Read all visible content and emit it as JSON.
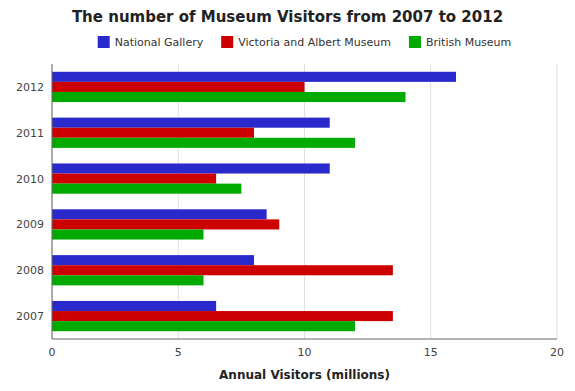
{
  "chart_data": {
    "type": "bar",
    "orientation": "horizontal",
    "title": "The number of Museum Visitors from 2007 to 2012",
    "xlabel": "Annual Visitors (millions)",
    "categories": [
      "2007",
      "2008",
      "2009",
      "2010",
      "2011",
      "2012"
    ],
    "series": [
      {
        "name": "National Gallery",
        "color": "#2929CC",
        "values": [
          6.5,
          8.0,
          8.5,
          11.0,
          11.0,
          16.0
        ]
      },
      {
        "name": "Victoria and Albert Museum",
        "color": "#CC0000",
        "values": [
          13.5,
          13.5,
          9.0,
          6.5,
          8.0,
          10.0
        ]
      },
      {
        "name": "British Museum",
        "color": "#00AA00",
        "values": [
          12.0,
          6.0,
          6.0,
          7.5,
          12.0,
          14.0
        ]
      }
    ],
    "xlim": [
      0,
      20
    ],
    "xticks": [
      0,
      5,
      10,
      15,
      20
    ],
    "grid": true,
    "legend": "top"
  }
}
